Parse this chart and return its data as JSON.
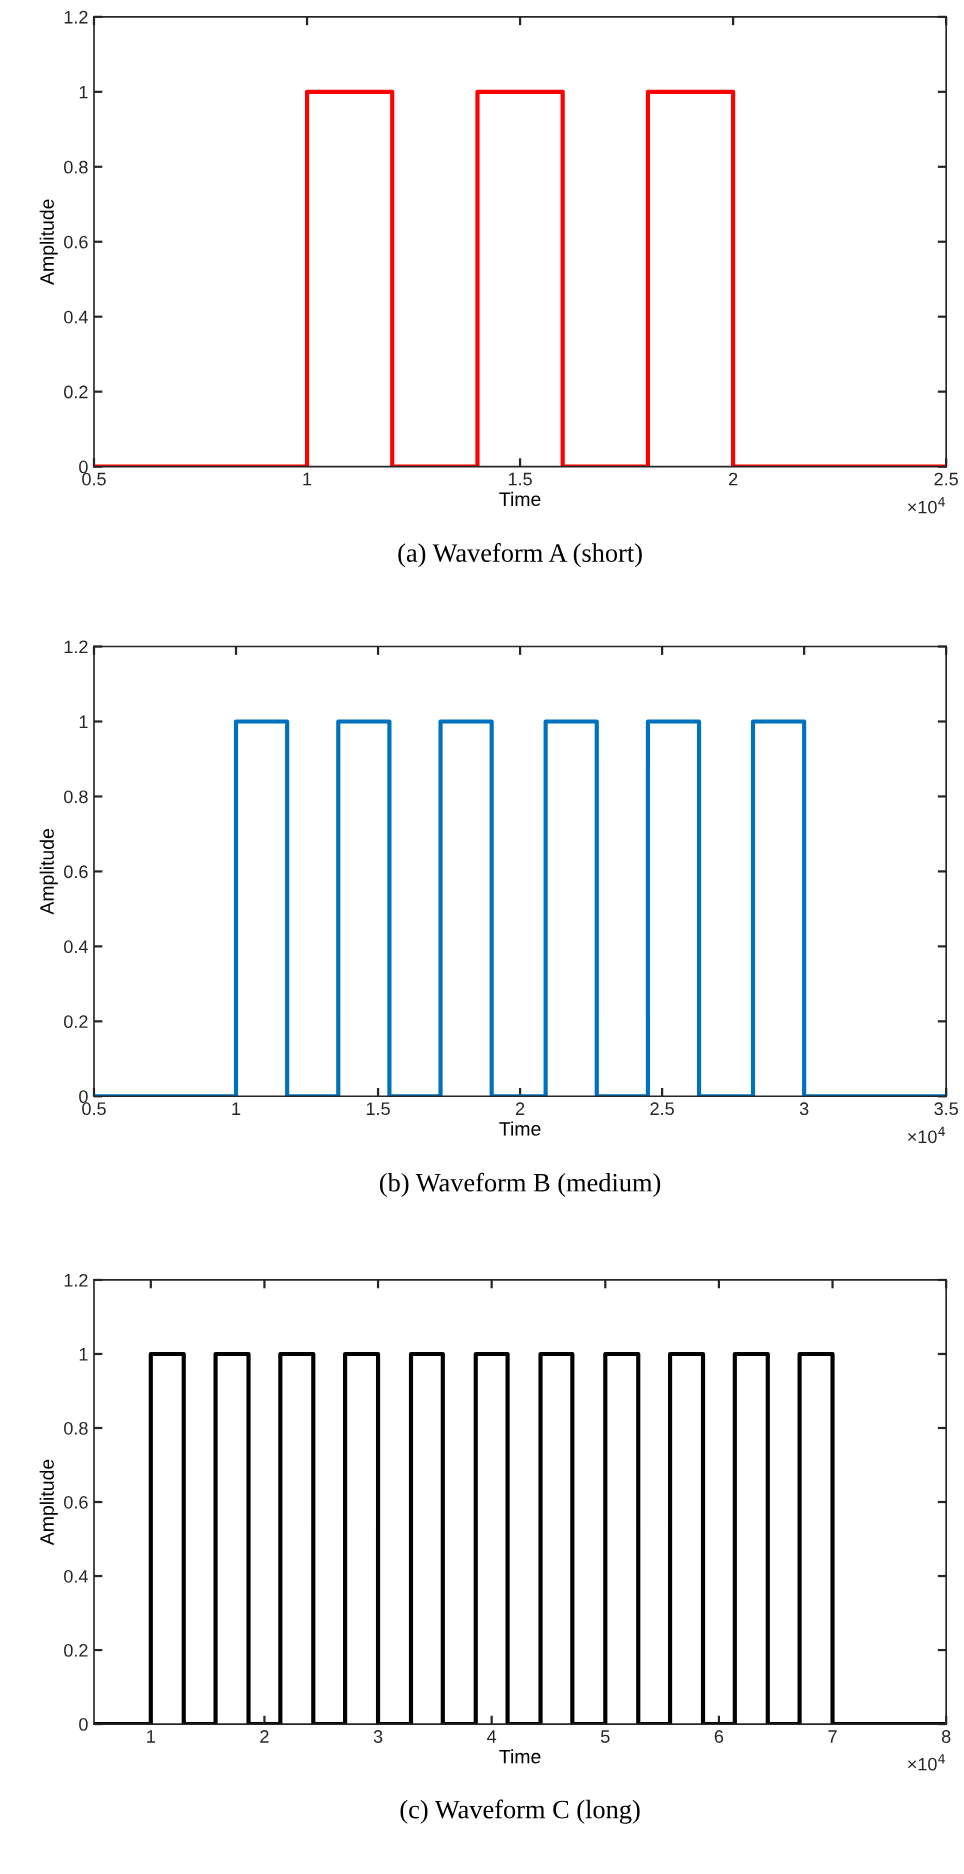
{
  "chart_data": [
    {
      "type": "line",
      "title": "(a) Waveform A (short)",
      "xlabel": "Time",
      "ylabel": "Amplitude",
      "annotations": [
        "×10$^{4}$"
      ],
      "series": [
        {
          "color": "#ff0000",
          "x": [
            0.5,
            1.0,
            1.0,
            1.2,
            1.2,
            1.4,
            1.4,
            1.6,
            1.6,
            1.8,
            1.8,
            2.0,
            2.0,
            2.5
          ],
          "values": [
            0,
            0,
            1,
            1,
            0,
            0,
            1,
            1,
            0,
            0,
            1,
            1,
            0,
            0
          ]
        }
      ],
      "xlim": [
        0.5,
        2.5
      ],
      "xticks": [
        0.5,
        1,
        1.5,
        2,
        2.5
      ],
      "ylim": [
        0,
        1.2
      ],
      "yticks": [
        0,
        0.2,
        0.4,
        0.6,
        0.8,
        1,
        1.2
      ]
    },
    {
      "type": "line",
      "title": "(b) Waveform B (medium)",
      "xlabel": "Time",
      "ylabel": "Amplitude",
      "annotations": [
        "×10$^{4}$"
      ],
      "series": [
        {
          "color": "#0072bd",
          "x": [
            0.5,
            1.0,
            1.0,
            1.18,
            1.18,
            1.36,
            1.36,
            1.54,
            1.54,
            1.72,
            1.72,
            1.9,
            1.9,
            2.09,
            2.09,
            2.27,
            2.27,
            2.45,
            2.45,
            2.63,
            2.63,
            2.82,
            2.82,
            3.0,
            3.0,
            3.5
          ],
          "values": [
            0,
            0,
            1,
            1,
            0,
            0,
            1,
            1,
            0,
            0,
            1,
            1,
            0,
            0,
            1,
            1,
            0,
            0,
            1,
            1,
            0,
            0,
            1,
            1,
            0,
            0
          ]
        }
      ],
      "xlim": [
        0.5,
        3.5
      ],
      "xticks": [
        0.5,
        1,
        1.5,
        2,
        2.5,
        3,
        3.5
      ],
      "ylim": [
        0,
        1.2
      ],
      "yticks": [
        0,
        0.2,
        0.4,
        0.6,
        0.8,
        1,
        1.2
      ]
    },
    {
      "type": "line",
      "title": "(c) Waveform C (long)",
      "xlabel": "Time",
      "ylabel": "Amplitude",
      "annotations": [
        "×10$^{4}$"
      ],
      "series": [
        {
          "color": "#000000",
          "x": [
            0.5,
            1.0,
            1.0,
            1.29,
            1.29,
            1.57,
            1.57,
            1.86,
            1.86,
            2.14,
            2.14,
            2.43,
            2.43,
            2.71,
            2.71,
            3.0,
            3.0,
            3.29,
            3.29,
            3.57,
            3.57,
            3.86,
            3.86,
            4.14,
            4.14,
            4.43,
            4.43,
            4.71,
            4.71,
            5.0,
            5.0,
            5.29,
            5.29,
            5.57,
            5.57,
            5.86,
            5.86,
            6.14,
            6.14,
            6.43,
            6.43,
            6.71,
            6.71,
            7.0,
            7.0,
            8.0
          ],
          "values": [
            0,
            0,
            1,
            1,
            0,
            0,
            1,
            1,
            0,
            0,
            1,
            1,
            0,
            0,
            1,
            1,
            0,
            0,
            1,
            1,
            0,
            0,
            1,
            1,
            0,
            0,
            1,
            1,
            0,
            0,
            1,
            1,
            0,
            0,
            1,
            1,
            0,
            0,
            1,
            1,
            0,
            0,
            1,
            1,
            0,
            0
          ]
        }
      ],
      "xlim": [
        0.5,
        8
      ],
      "xticks": [
        1,
        2,
        3,
        4,
        5,
        6,
        7,
        8
      ],
      "ylim": [
        0,
        1.2
      ],
      "yticks": [
        0,
        0.2,
        0.4,
        0.6,
        0.8,
        1,
        1.2
      ]
    }
  ]
}
